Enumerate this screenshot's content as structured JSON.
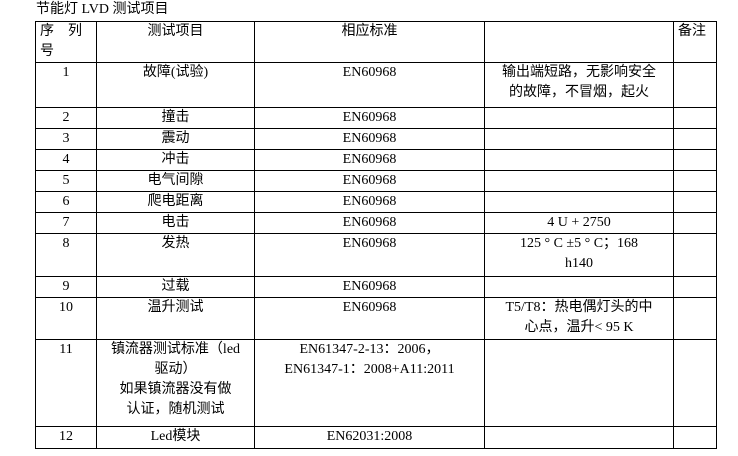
{
  "title": "节能灯 LVD 测试项目",
  "headers": {
    "seq": "序　列\n号",
    "item": "测试项目",
    "standard": "相应标准",
    "requirement": "",
    "remark": "备注"
  },
  "rows": [
    {
      "seq": "1",
      "item": "故障(试验)",
      "standard": "EN60968",
      "requirement": "输出端短路，无影响安全\n的故障，不冒烟，起火",
      "remark": ""
    },
    {
      "seq": "2",
      "item": "撞击",
      "standard": "EN60968",
      "requirement": "",
      "remark": ""
    },
    {
      "seq": "3",
      "item": "震动",
      "standard": "EN60968",
      "requirement": "",
      "remark": ""
    },
    {
      "seq": "4",
      "item": "冲击",
      "standard": "EN60968",
      "requirement": "",
      "remark": ""
    },
    {
      "seq": "5",
      "item": "电气间隙",
      "standard": "EN60968",
      "requirement": "",
      "remark": ""
    },
    {
      "seq": "6",
      "item": "爬电距离",
      "standard": "EN60968",
      "requirement": "",
      "remark": ""
    },
    {
      "seq": "7",
      "item": "电击",
      "standard": "EN60968",
      "requirement": "4 U + 2750",
      "remark": ""
    },
    {
      "seq": "8",
      "item": "发热",
      "standard": "EN60968",
      "requirement": "125 ° C ±5 ° C；168\nh140",
      "remark": ""
    },
    {
      "seq": "9",
      "item": "过载",
      "standard": "EN60968",
      "requirement": "",
      "remark": ""
    },
    {
      "seq": "10",
      "item": "温升测试",
      "standard": "EN60968",
      "requirement": "T5/T8：热电偶灯头的中\n心点，温升< 95 K",
      "remark": ""
    },
    {
      "seq": "11",
      "item": "镇流器测试标准（led\n驱动）\n如果镇流器没有做\n认证，随机测试",
      "standard": "EN61347-2-13：2006，\nEN61347-1：2008+A11:2011",
      "requirement": "",
      "remark": ""
    },
    {
      "seq": "12",
      "item": "Led模块",
      "standard": "EN62031:2008",
      "requirement": "",
      "remark": ""
    }
  ]
}
